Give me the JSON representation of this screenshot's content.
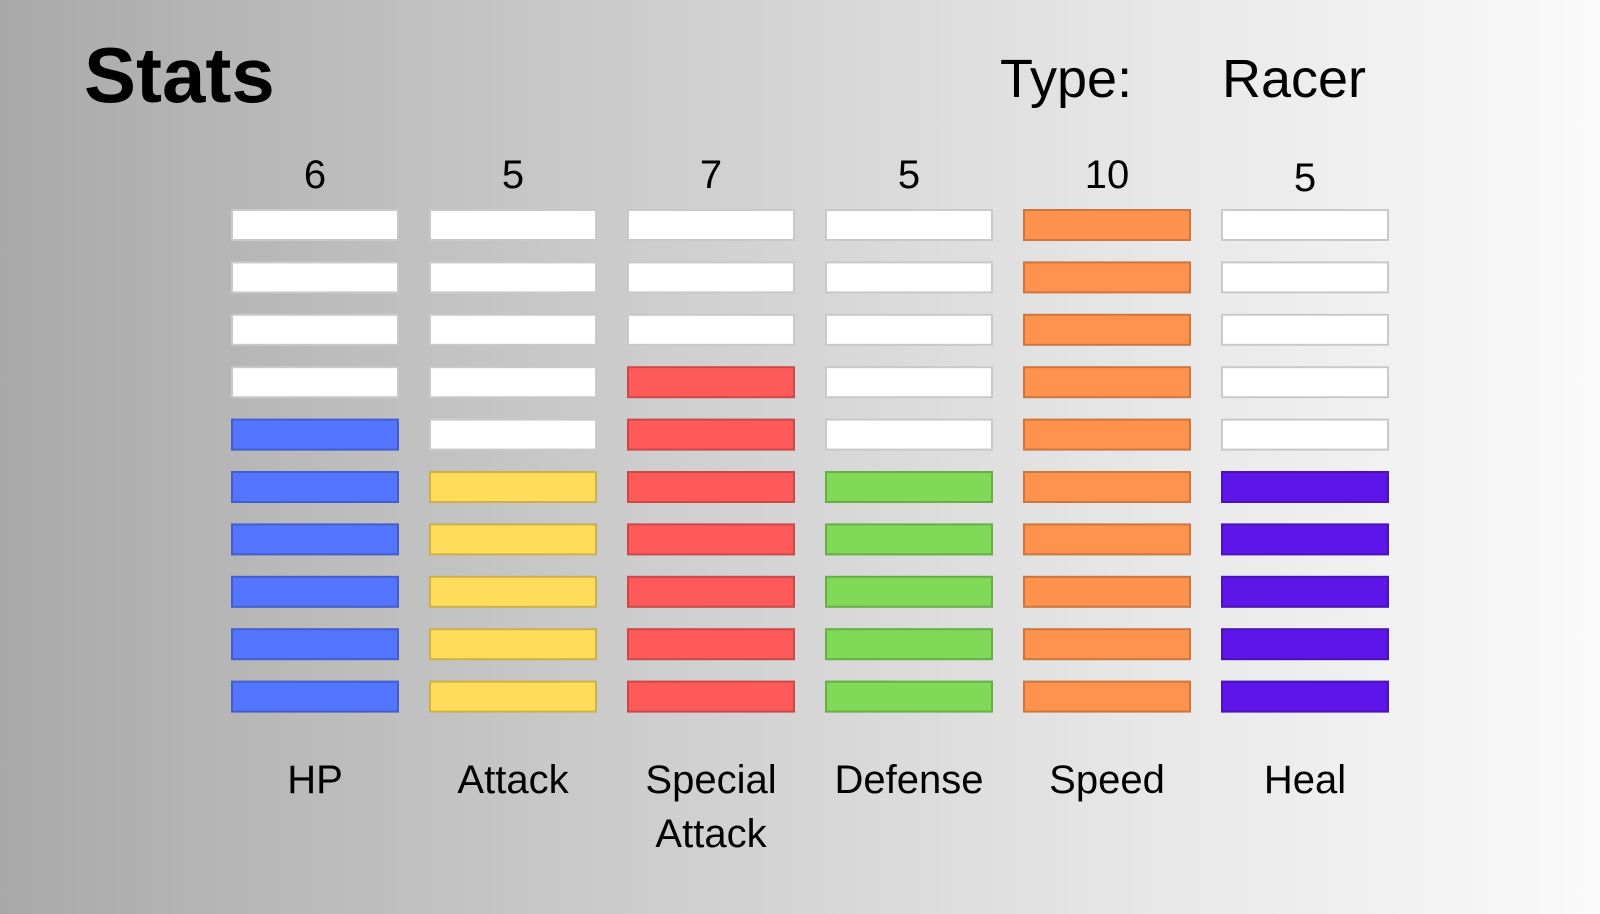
{
  "header": {
    "title": "Stats",
    "type_label": "Type:",
    "type_value": "Racer"
  },
  "chart_data": {
    "type": "bar",
    "max_segments": 10,
    "empty_color": "#ffffff",
    "stats": [
      {
        "label": "HP",
        "value": 6,
        "color": "#5375ff"
      },
      {
        "label": "Attack",
        "value": 5,
        "color": "#ffdd5a"
      },
      {
        "label": "Special Attack",
        "value": 7,
        "color": "#ff5a5a"
      },
      {
        "label": "Defense",
        "value": 5,
        "color": "#80d957"
      },
      {
        "label": "Speed",
        "value": 10,
        "color": "#ff934d"
      },
      {
        "label": "Heal",
        "value": 5,
        "color": "#5e16e8"
      }
    ]
  }
}
